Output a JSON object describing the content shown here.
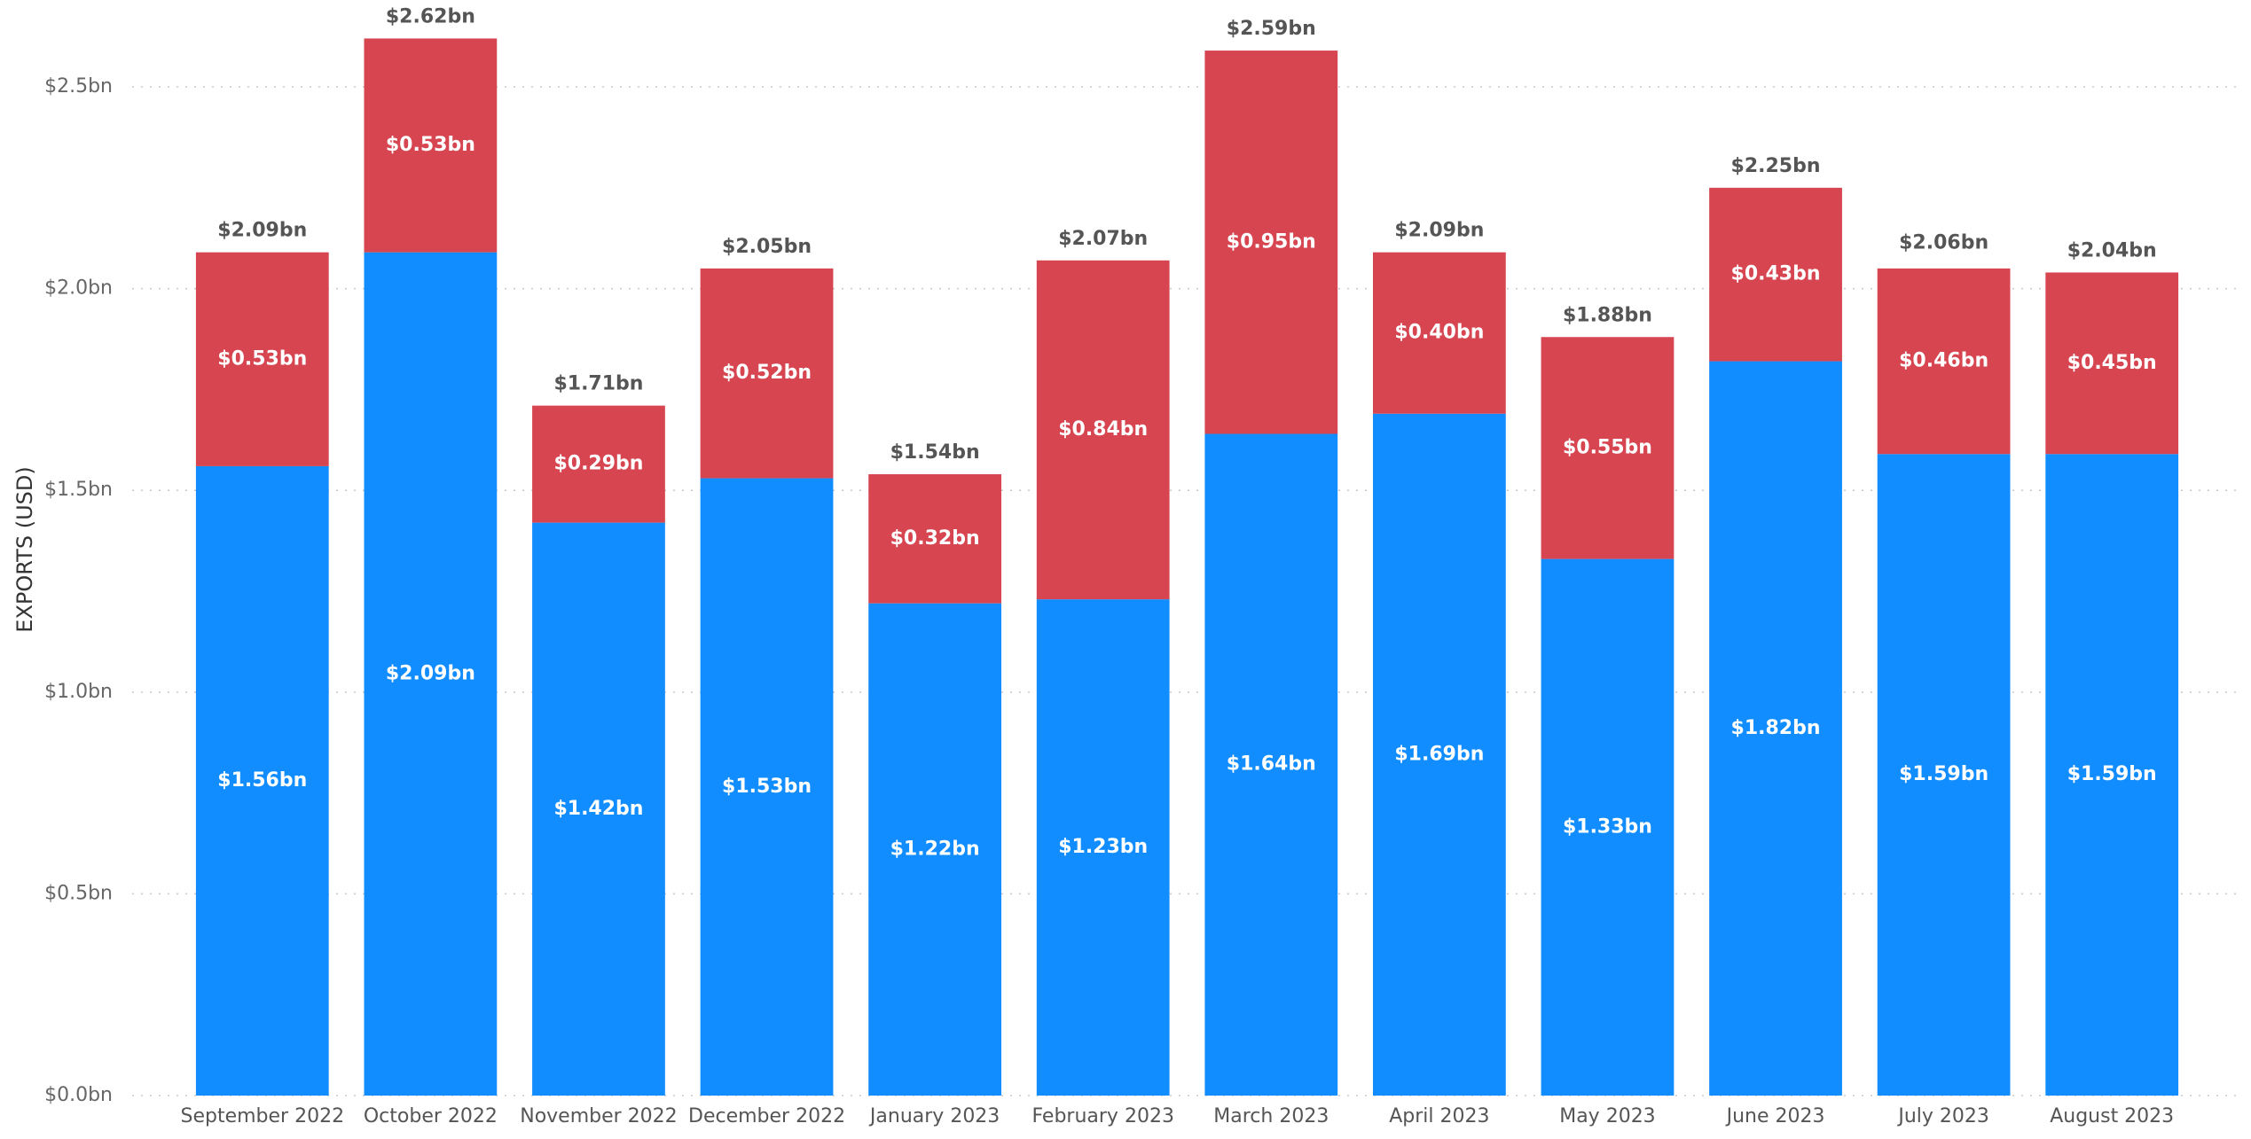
{
  "chart_data": {
    "type": "stacked-bar",
    "y_axis_title": "EXPORTS (USD)",
    "categories": [
      "September 2022",
      "October 2022",
      "November 2022",
      "December 2022",
      "January 2023",
      "February 2023",
      "March 2023",
      "April 2023",
      "May 2023",
      "June 2023",
      "July 2023",
      "August 2023"
    ],
    "series": [
      {
        "color": "#118dff",
        "values": [
          1.56,
          2.09,
          1.42,
          1.53,
          1.22,
          1.23,
          1.64,
          1.69,
          1.33,
          1.82,
          1.59,
          1.59
        ],
        "value_labels": [
          "$1.56bn",
          "$2.09bn",
          "$1.42bn",
          "$1.53bn",
          "$1.22bn",
          "$1.23bn",
          "$1.64bn",
          "$1.69bn",
          "$1.33bn",
          "$1.82bn",
          "$1.59bn",
          "$1.59bn"
        ]
      },
      {
        "color": "#d64550",
        "values": [
          0.53,
          0.53,
          0.29,
          0.52,
          0.32,
          0.84,
          0.95,
          0.4,
          0.55,
          0.43,
          0.46,
          0.45
        ],
        "value_labels": [
          "$0.53bn",
          "$0.53bn",
          "$0.29bn",
          "$0.52bn",
          "$0.32bn",
          "$0.84bn",
          "$0.95bn",
          "$0.40bn",
          "$0.55bn",
          "$0.43bn",
          "$0.46bn",
          "$0.45bn"
        ]
      }
    ],
    "totals": {
      "values": [
        2.09,
        2.62,
        1.71,
        2.05,
        1.54,
        2.07,
        2.59,
        2.09,
        1.88,
        2.25,
        2.06,
        2.04
      ],
      "value_labels": [
        "$2.09bn",
        "$2.62bn",
        "$1.71bn",
        "$2.05bn",
        "$1.54bn",
        "$2.07bn",
        "$2.59bn",
        "$2.09bn",
        "$1.88bn",
        "$2.25bn",
        "$2.06bn",
        "$2.04bn"
      ]
    },
    "ylim": [
      0,
      2.7
    ],
    "yticks": [
      {
        "value": 0,
        "label": "$0.0bn"
      },
      {
        "value": 0.5,
        "label": "$0.5bn"
      },
      {
        "value": 1,
        "label": "$1.0bn"
      },
      {
        "value": 1.5,
        "label": "$1.5bn"
      },
      {
        "value": 2,
        "label": "$2.0bn"
      },
      {
        "value": 2.5,
        "label": "$2.5bn"
      }
    ],
    "grid": true
  }
}
